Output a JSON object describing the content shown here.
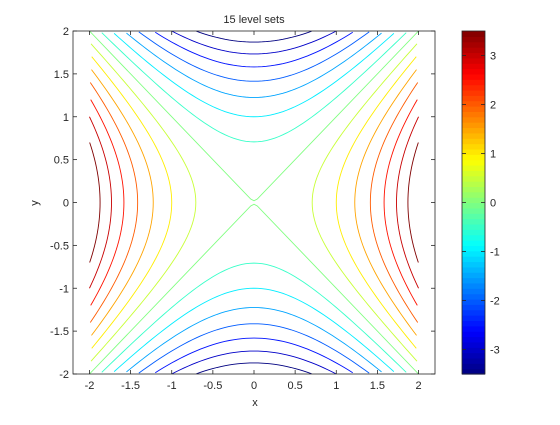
{
  "chart_data": {
    "type": "contour",
    "title": "15 level sets",
    "xlabel": "x",
    "ylabel": "y",
    "function": "x^2 - y^2",
    "xlim": [
      -2.2,
      2.2
    ],
    "ylim": [
      -2,
      2
    ],
    "x_ticks": [
      -2,
      -1.5,
      -1,
      -0.5,
      0,
      0.5,
      1,
      1.5,
      2
    ],
    "y_ticks": [
      -2,
      -1.5,
      -1,
      -0.5,
      0,
      0.5,
      1,
      1.5,
      2
    ],
    "x_tick_labels": [
      "-2",
      "-1.5",
      "-1",
      "-0.5",
      "0",
      "0.5",
      "1",
      "1.5",
      "2"
    ],
    "y_tick_labels": [
      "-2",
      "-1.5",
      "-1",
      "-0.5",
      "0",
      "0.5",
      "1",
      "1.5",
      "2"
    ],
    "level_count": 15,
    "levels": [
      -3.5,
      -3,
      -2.5,
      -2,
      -1.5,
      -1,
      -0.5,
      0,
      0.5,
      1,
      1.5,
      2,
      2.5,
      3,
      3.5
    ],
    "colorbar": {
      "colormap": "jet",
      "range": [
        -3.5,
        3.5
      ],
      "ticks": [
        -3,
        -2,
        -1,
        0,
        1,
        2,
        3
      ],
      "tick_labels": [
        "-3",
        "-2",
        "-1",
        "0",
        "1",
        "2",
        "3"
      ]
    },
    "grid": false,
    "legend": "none"
  }
}
